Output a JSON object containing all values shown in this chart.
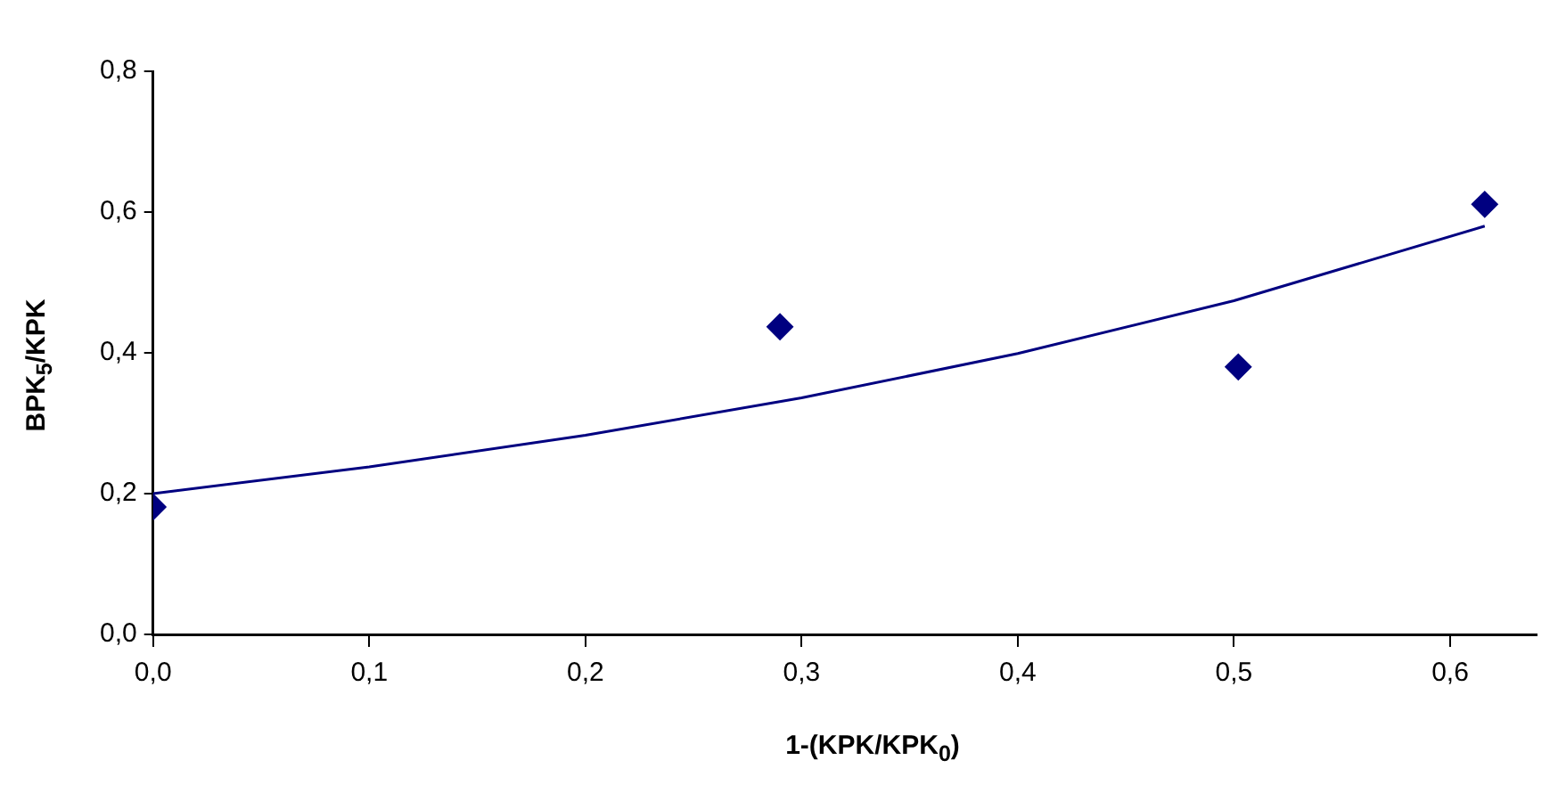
{
  "chart_data": {
    "type": "scatter",
    "xlabel": "1-(KPK/KPK$_{0}$)",
    "ylabel": "BPK$_{5}$/KPK",
    "xlim": [
      0,
      0.64
    ],
    "xticks": [
      {
        "value": 0,
        "label": "0,0"
      },
      {
        "value": 0.1,
        "label": "0,1"
      },
      {
        "value": 0.2,
        "label": "0,2"
      },
      {
        "value": 0.3,
        "label": "0,3"
      },
      {
        "value": 0.4,
        "label": "0,4"
      },
      {
        "value": 0.5,
        "label": "0,5"
      },
      {
        "value": 0.6,
        "label": "0,6"
      }
    ],
    "ylim": [
      0,
      0.8
    ],
    "yticks": [
      {
        "value": 0,
        "label": "0,0"
      },
      {
        "value": 0.2,
        "label": "0,2"
      },
      {
        "value": 0.4,
        "label": "0,4"
      },
      {
        "value": 0.6,
        "label": "0,6"
      },
      {
        "value": 0.8,
        "label": "0,8"
      }
    ],
    "grid": false,
    "legend": false,
    "series": [
      {
        "color": "#000080",
        "marker": "diamond",
        "x": [
          0,
          0.29,
          0.502,
          0.616
        ],
        "values": [
          0.181,
          0.437,
          0.38,
          0.611
        ]
      },
      {
        "type": "line",
        "color": "#000080",
        "marker": "none",
        "line_style": "solid",
        "x": [
          0,
          0.1,
          0.2,
          0.3,
          0.4,
          0.5,
          0.616
        ],
        "values": [
          0.2,
          0.238,
          0.283,
          0.336,
          0.399,
          0.474,
          0.58
        ]
      }
    ]
  }
}
